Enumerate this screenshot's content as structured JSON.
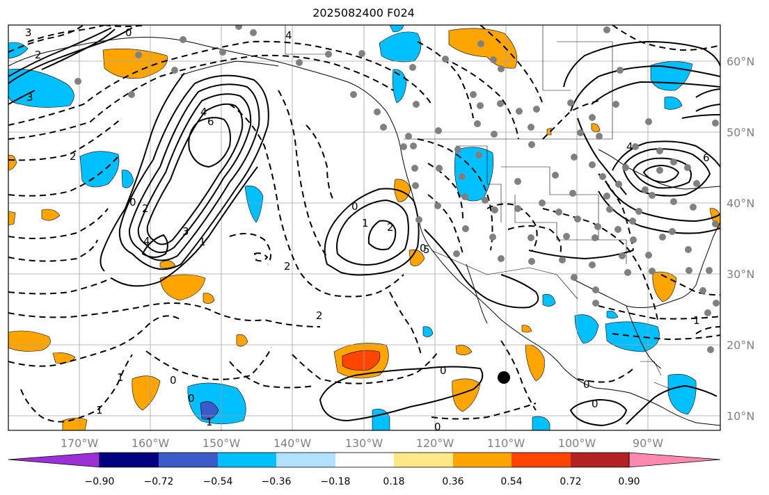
{
  "title": "2025082400 F024",
  "lon_ticks": [
    "170°W",
    "160°W",
    "150°W",
    "140°W",
    "130°W",
    "120°W",
    "110°W",
    "100°W",
    "90°W"
  ],
  "lat_ticks": [
    "60°N",
    "50°N",
    "40°N",
    "30°N",
    "20°N",
    "10°N"
  ],
  "colorbar": {
    "colors": [
      "#9b30d6",
      "#000080",
      "#3a5bc8",
      "#00bfff",
      "#b0e2ff",
      "#ffffff",
      "#ffe886",
      "#ffa500",
      "#ff4500",
      "#b22222",
      "#ff88b0"
    ],
    "labels": [
      "−0.90",
      "−0.72",
      "−0.54",
      "−0.36",
      "−0.18",
      "0.18",
      "0.36",
      "0.54",
      "0.72",
      "0.90"
    ]
  },
  "contour_labels": [
    "3",
    "0",
    "2",
    "4",
    "3",
    "6",
    "4",
    "0",
    "2",
    "4",
    "3",
    "1",
    "2",
    "2",
    "0",
    "1",
    "2",
    "0",
    "5",
    "2",
    "0",
    "1",
    "0",
    "0",
    "1",
    "1",
    "0",
    "0",
    "0",
    "1",
    "6",
    "4"
  ],
  "colors": {
    "land": "#ffffff",
    "grid": "#a0a0a0",
    "station": "#808080"
  }
}
